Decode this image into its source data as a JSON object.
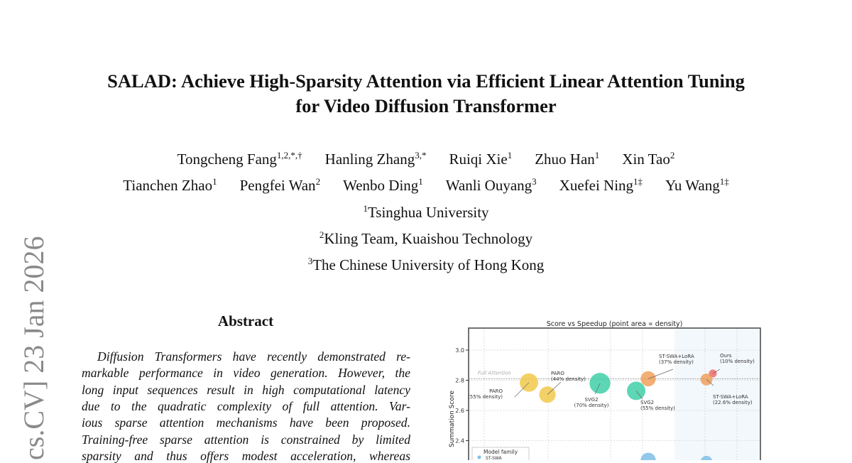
{
  "paper": {
    "title_lines": [
      "SALAD: Achieve High-Sparsity Attention via Efficient Linear Attention Tuning",
      "for Video Diffusion Transformer"
    ],
    "authors_row1": [
      {
        "name": "Tongcheng Fang",
        "sup": "1,2,*,†"
      },
      {
        "name": "Hanling Zhang",
        "sup": "3,*"
      },
      {
        "name": "Ruiqi Xie",
        "sup": "1"
      },
      {
        "name": "Zhuo Han",
        "sup": "1"
      },
      {
        "name": "Xin Tao",
        "sup": "2"
      }
    ],
    "authors_row2": [
      {
        "name": "Tianchen Zhao",
        "sup": "1"
      },
      {
        "name": "Pengfei Wan",
        "sup": "2"
      },
      {
        "name": "Wenbo Ding",
        "sup": "1"
      },
      {
        "name": "Wanli Ouyang",
        "sup": "3"
      },
      {
        "name": "Xuefei Ning",
        "sup": "1‡"
      },
      {
        "name": "Yu Wang",
        "sup": "1‡"
      }
    ],
    "affiliations": [
      {
        "sup": "1",
        "name": "Tsinghua University"
      },
      {
        "sup": "2",
        "name": "Kling Team, Kuaishou Technology"
      },
      {
        "sup": "3",
        "name": "The Chinese University of Hong Kong"
      }
    ],
    "arxiv_stamp": "cs.CV]  23 Jan 2026",
    "abstract_heading": "Abstract",
    "abstract_lines": [
      "Diffusion Transformers have recently demonstrated re-",
      "markable performance in video generation. However, the",
      "long input sequences result in high computational latency",
      "due to the quadratic complexity of full attention. Var-",
      "ious sparse attention mechanisms have been proposed.",
      "Training-free sparse attention is constrained by limited",
      "sparsity and thus offers modest acceleration, whereas"
    ]
  },
  "chart_data": {
    "type": "scatter",
    "title": "Score vs Speedup (point area ∝ density)",
    "ylabel": "Summation Score",
    "yticks": [
      "3.0",
      "2.8",
      "2.6",
      "2.4"
    ],
    "ylim": [
      2.26,
      3.15
    ],
    "grid": true,
    "reference_line": {
      "label": "Full Attention",
      "y": 2.81
    },
    "legend": {
      "title": "Model family",
      "entries": [
        "ST-SWA"
      ],
      "placement": "bottom-left"
    },
    "colors": {
      "PARO": "#f2c94c",
      "SVG2": "#3fcfa8",
      "ST-SWA+LoRA": "#f0a05a",
      "Ours": "#ef6b6b",
      "ST-SWA": "#7fbfe8"
    },
    "points": [
      {
        "family": "PARO",
        "label": "PARO",
        "density_label": "(55% density)",
        "density": 55,
        "score": 2.785
      },
      {
        "family": "PARO",
        "label": "PARO",
        "density_label": "(44% density)",
        "density": 44,
        "score": 2.705
      },
      {
        "family": "SVG2",
        "label": "SVG2",
        "density_label": "(70% density)",
        "density": 70,
        "score": 2.78
      },
      {
        "family": "SVG2",
        "label": "SVG2",
        "density_label": "(55% density)",
        "density": 55,
        "score": 2.73
      },
      {
        "family": "ST-SWA+LoRA",
        "label": "ST-SWA+LoRA",
        "density_label": "(37% density)",
        "density": 37,
        "score": 2.81
      },
      {
        "family": "Ours",
        "label": "Ours",
        "density_label": "(10% density)",
        "density": 10,
        "score": 2.845
      },
      {
        "family": "ST-SWA+LoRA",
        "label": "ST-SWA+LoRA",
        "density_label": "(22.6% density)",
        "density": 22.6,
        "score": 2.805
      },
      {
        "family": "ST-SWA",
        "label": "",
        "density_label": "",
        "density": 37,
        "score": 2.27
      },
      {
        "family": "ST-SWA",
        "label": "",
        "density_label": "",
        "density": 22.6,
        "score": 2.26
      }
    ]
  }
}
